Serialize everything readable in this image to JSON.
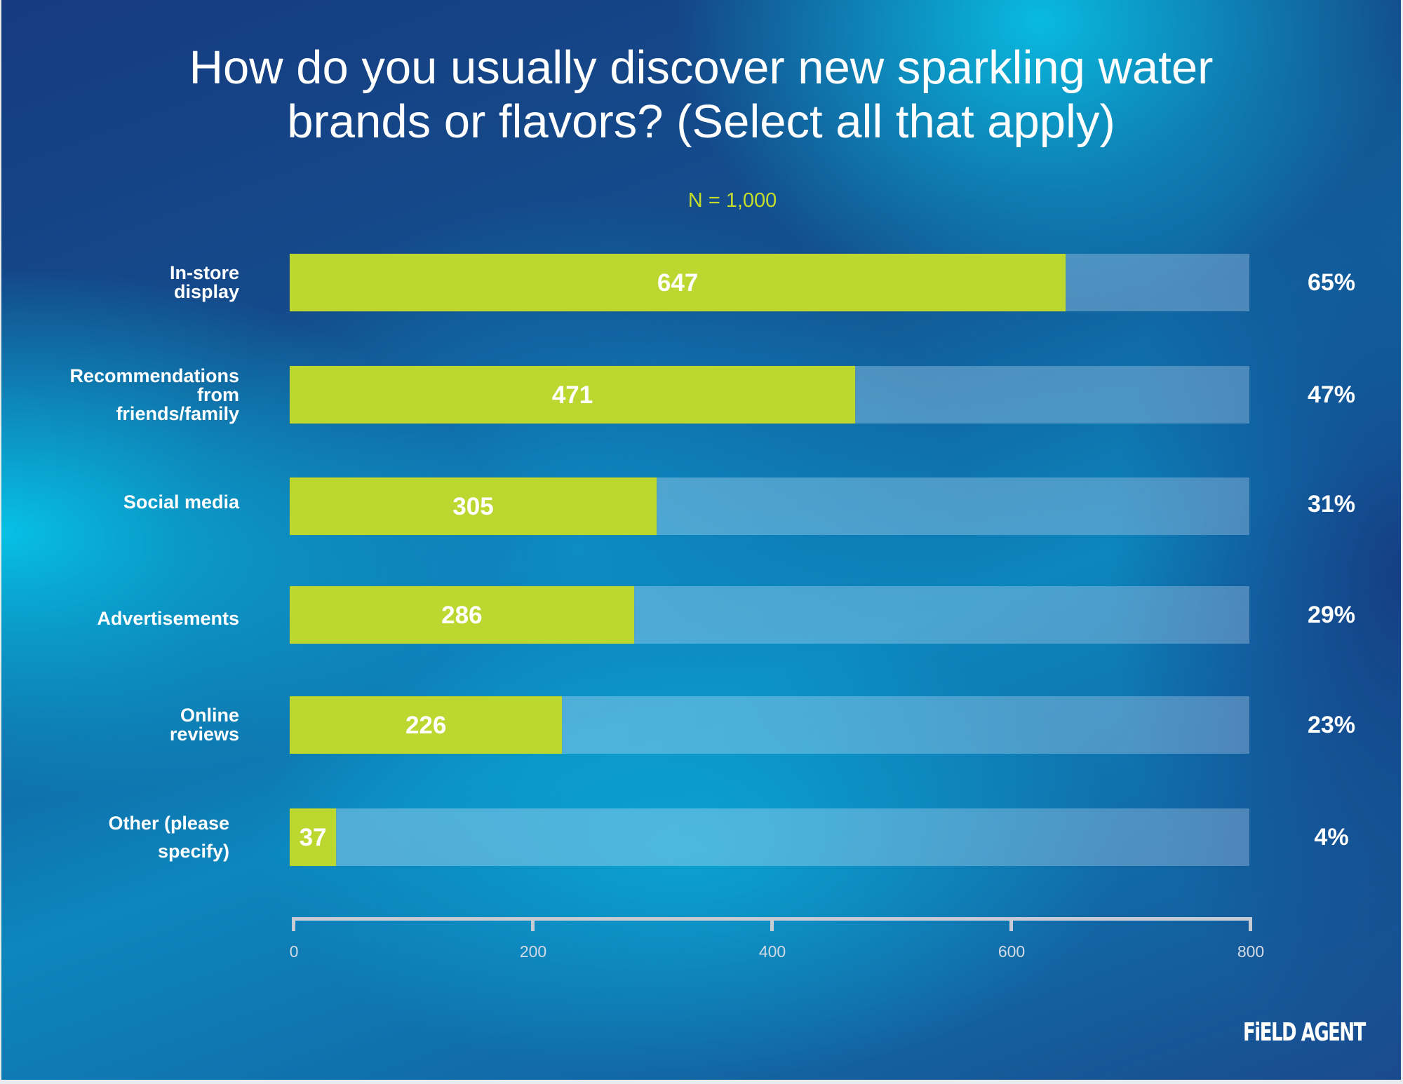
{
  "title": {
    "line1": "How do you usually discover new sparkling water",
    "line2": "brands or flavors? (Select all that apply)"
  },
  "sample_size": "N = 1,000",
  "logo": "FiELD AGENT",
  "colors": {
    "bar": "#bcd72f",
    "sample_label": "#c5dc2b",
    "text": "#ffffff",
    "axis": "#c7ccd4"
  },
  "chart_data": {
    "type": "bar",
    "orientation": "horizontal",
    "title": "How do you usually discover new sparkling water brands or flavors? (Select all that apply)",
    "subtitle": "N = 1,000",
    "categories": [
      [
        "In-store",
        "display"
      ],
      [
        "Recommendations",
        "from",
        "friends/family"
      ],
      [
        "Social media"
      ],
      [
        "Advertisements"
      ],
      [
        "Online",
        "reviews"
      ],
      [
        "Other (please",
        "specify)"
      ]
    ],
    "category_names": [
      "In-store display",
      "Recommendations from friends/family",
      "Social media",
      "Advertisements",
      "Online reviews",
      "Other (please specify)"
    ],
    "values": [
      647,
      471,
      305,
      286,
      226,
      37
    ],
    "value_labels": [
      "647",
      "471",
      "305",
      "286",
      "226",
      "37"
    ],
    "percent_labels": [
      "65%",
      "47%",
      "31%",
      "29%",
      "23%",
      "4%"
    ],
    "xlabel": "",
    "ylabel": "",
    "xlim": [
      0,
      800
    ],
    "xticks": [
      0,
      200,
      400,
      600,
      800
    ],
    "xtick_labels": [
      "0",
      "200",
      "400",
      "600",
      "800"
    ],
    "grid": false,
    "legend": "none"
  }
}
